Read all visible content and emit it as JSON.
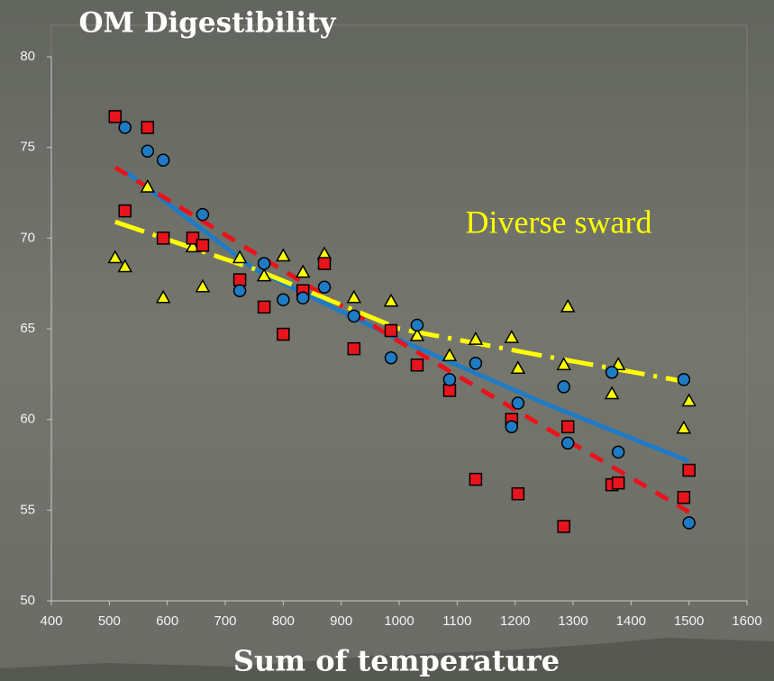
{
  "chart_data": {
    "type": "scatter",
    "title": "OM Digestibility",
    "x_label": "Sum of temperature",
    "annotation": "Diverse sward",
    "annotation_color": "#ffff00",
    "xlim": [
      400,
      1600
    ],
    "ylim": [
      50,
      80
    ],
    "xticks": [
      400,
      500,
      600,
      700,
      800,
      900,
      1000,
      1100,
      1200,
      1300,
      1400,
      1500,
      1600
    ],
    "yticks": [
      50,
      55,
      60,
      65,
      70,
      75,
      80
    ],
    "series": [
      {
        "color": "#1f7bc4",
        "style": "solid",
        "x": [
          527,
          750,
          1000,
          1250,
          1500
        ],
        "values": [
          73.7,
          68.3,
          64.4,
          60.9,
          57.7
        ]
      },
      {
        "color": "#e8141c",
        "style": "dashed",
        "x": [
          510,
          1000,
          1500
        ],
        "values": [
          73.9,
          64.3,
          54.9
        ]
      },
      {
        "color": "#ffff00",
        "style": "dashdot",
        "x": [
          510,
          750,
          1000,
          1250,
          1491
        ],
        "values": [
          70.9,
          68.3,
          65.0,
          63.5,
          62.1
        ]
      },
      {
        "color": "#ffff00",
        "marker": "triangle",
        "x": [
          510,
          527,
          566,
          593,
          644,
          661,
          725,
          767,
          800,
          834,
          871,
          922,
          986,
          1031,
          1087,
          1132,
          1194,
          1205,
          1284,
          1291,
          1367,
          1378,
          1491,
          1500
        ],
        "values": [
          68.9,
          68.4,
          72.8,
          66.7,
          69.5,
          67.3,
          68.9,
          67.9,
          69.0,
          68.1,
          69.1,
          66.7,
          66.5,
          64.6,
          63.5,
          64.4,
          64.5,
          62.8,
          63.0,
          66.2,
          61.4,
          63.0,
          59.5,
          61.0
        ]
      },
      {
        "color": "#e8141c",
        "marker": "square",
        "x": [
          510,
          527,
          566,
          593,
          644,
          661,
          725,
          767,
          800,
          834,
          871,
          922,
          986,
          1031,
          1087,
          1132,
          1194,
          1205,
          1284,
          1291,
          1367,
          1378,
          1491,
          1500
        ],
        "values": [
          76.7,
          71.5,
          76.1,
          70.0,
          70.0,
          69.6,
          67.7,
          66.2,
          64.7,
          67.1,
          68.6,
          63.9,
          64.9,
          63.0,
          61.6,
          56.7,
          60.0,
          55.9,
          54.1,
          59.6,
          56.4,
          56.5,
          55.7,
          57.2
        ]
      },
      {
        "color": "#1f7bc4",
        "marker": "circle",
        "x": [
          527,
          566,
          593,
          661,
          725,
          767,
          800,
          834,
          871,
          922,
          986,
          1031,
          1087,
          1132,
          1194,
          1205,
          1284,
          1291,
          1367,
          1378,
          1491,
          1500
        ],
        "values": [
          76.1,
          74.8,
          74.3,
          71.3,
          67.1,
          68.6,
          66.6,
          66.7,
          67.3,
          65.7,
          63.4,
          65.2,
          62.2,
          63.1,
          59.6,
          60.9,
          61.8,
          58.7,
          62.6,
          58.2,
          62.2,
          54.3
        ]
      }
    ]
  }
}
